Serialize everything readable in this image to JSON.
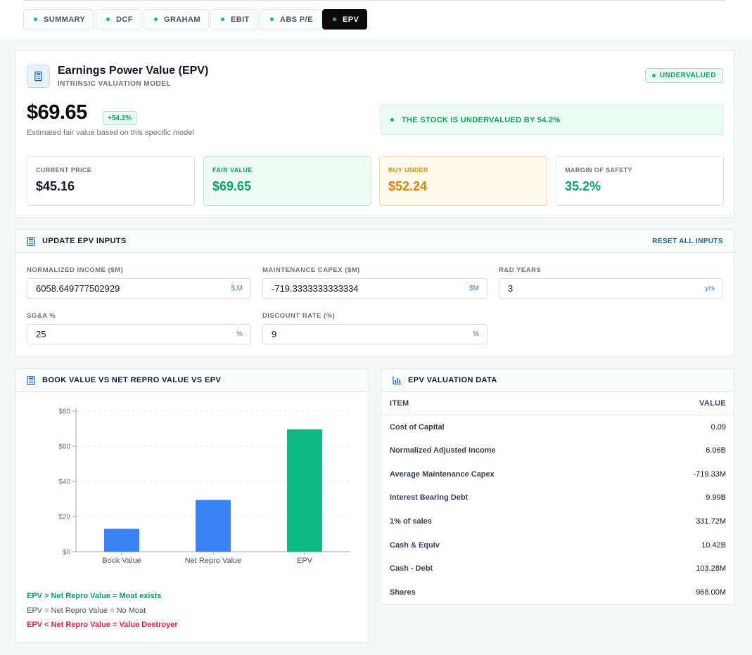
{
  "tabs": [
    {
      "label": "SUMMARY",
      "active": false
    },
    {
      "label": "DCF",
      "active": false
    },
    {
      "label": "GRAHAM",
      "active": false
    },
    {
      "label": "EBIT",
      "active": false
    },
    {
      "label": "ABS P/E",
      "active": false
    },
    {
      "label": "EPV",
      "active": true
    }
  ],
  "model": {
    "title": "Earnings Power Value (EPV)",
    "subtitle": "INTRINSIC VALUATION MODEL",
    "status_badge": "UNDERVALUED",
    "fair_value": "$69.65",
    "change_badge": "+54.2%",
    "description": "Estimated fair value based on this specific model",
    "alert": "THE STOCK IS UNDERVALUED BY 54.2%"
  },
  "stats": [
    {
      "label": "CURRENT PRICE",
      "value": "$45.16"
    },
    {
      "label": "FAIR VALUE",
      "value": "$69.65"
    },
    {
      "label": "BUY UNDER",
      "value": "$52.24"
    },
    {
      "label": "MARGIN OF SAFETY",
      "value": "35.2%"
    }
  ],
  "inputs": {
    "heading": "UPDATE EPV INPUTS",
    "reset_label": "RESET ALL INPUTS",
    "fields": [
      {
        "label": "NORMALIZED INCOME ($M)",
        "value": "6058.649777502929",
        "unit": "$,M"
      },
      {
        "label": "MAINTENANCE CAPEX ($M)",
        "value": "-719.3333333333334",
        "unit": "$M"
      },
      {
        "label": "R&D YEARS",
        "value": "3",
        "unit": "yrs"
      },
      {
        "label": "SG&A %",
        "value": "25",
        "unit": "%"
      },
      {
        "label": "DISCOUNT RATE (%)",
        "value": "9",
        "unit": "%"
      }
    ]
  },
  "chart_card": {
    "heading": "BOOK VALUE VS NET REPRO VALUE VS EPV",
    "legend": [
      {
        "text": "EPV > Net Repro Value = Moat exists",
        "color": "#0a9e68"
      },
      {
        "text": "EPV = Net Repro Value = No Moat",
        "color": "#4b5563"
      },
      {
        "text": "EPV < Net Repro Value = Value Destroyer",
        "color": "#e11d48"
      }
    ]
  },
  "chart_data": {
    "type": "bar",
    "categories": [
      "Book Value",
      "Net Repro Value",
      "EPV"
    ],
    "values": [
      13,
      29.5,
      69.65
    ],
    "colors": [
      "#3b82f6",
      "#3b82f6",
      "#10b981"
    ],
    "ylim": [
      0,
      80
    ],
    "yticks": [
      "$0",
      "$20",
      "$40",
      "$60",
      "$80"
    ],
    "ytick_values": [
      0,
      20,
      40,
      60,
      80
    ],
    "grid": true
  },
  "valuation_table": {
    "heading": "EPV VALUATION DATA",
    "col_item": "ITEM",
    "col_value": "VALUE",
    "rows": [
      {
        "item": "Cost of Capital",
        "value": "0.09"
      },
      {
        "item": "Normalized Adjusted Income",
        "value": "6.06B"
      },
      {
        "item": "Average Maintenance Capex",
        "value": "-719.33M"
      },
      {
        "item": "Interest Bearing Debt",
        "value": "9.99B"
      },
      {
        "item": "1% of sales",
        "value": "331.72M"
      },
      {
        "item": "Cash & Equiv",
        "value": "10.42B"
      },
      {
        "item": "Cash - Debt",
        "value": "103.28M"
      },
      {
        "item": "Shares",
        "value": "968.00M"
      }
    ]
  },
  "colors": {
    "accent_green": "#10b981",
    "text_green": "#0a9e68",
    "orange": "#e0820a",
    "bar_blue": "#3b82f6",
    "link_blue": "#1d5fa3"
  }
}
